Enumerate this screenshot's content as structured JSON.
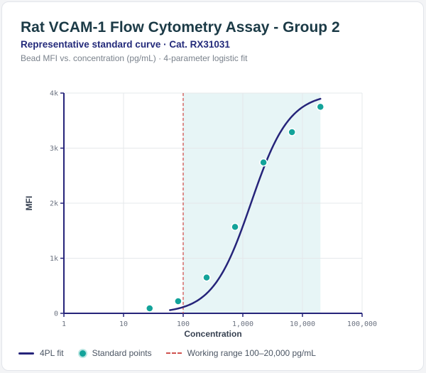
{
  "header": {
    "title": "Rat VCAM-1 Flow Cytometry Assay - Group 2",
    "subtitle": "Representative standard curve · Cat. RX31031",
    "description": "Bead MFI vs. concentration (pg/mL) · 4-parameter logistic fit"
  },
  "legend": {
    "fit_label": "4PL fit",
    "points_label": "Standard points",
    "range_label": "Working range 100–20,000 pg/mL"
  },
  "colors": {
    "fit": "#26247a",
    "points": "#13a39a",
    "range_line": "#d0524f",
    "range_band": "#e7f5f6"
  },
  "chart_data": {
    "type": "scatter",
    "xlabel": "Concentration",
    "ylabel": "MFI",
    "x_scale": "log",
    "xlim": [
      1,
      100000
    ],
    "ylim": [
      0,
      4000
    ],
    "x_ticks": [
      1,
      10,
      100,
      1000,
      10000,
      100000
    ],
    "x_tick_labels": [
      "1",
      "10",
      "100",
      "1,000",
      "10,000",
      "100,000"
    ],
    "y_ticks": [
      0,
      1000,
      2000,
      3000,
      4000
    ],
    "y_tick_labels": [
      "0",
      "1k",
      "2k",
      "3k",
      "4k"
    ],
    "grid": true,
    "working_range": [
      100,
      20000
    ],
    "lloq_line_x": 100,
    "series": [
      {
        "name": "Standard points",
        "x": [
          27.4,
          82.3,
          247,
          741,
          2222,
          6667,
          20000
        ],
        "y": [
          90,
          220,
          650,
          1570,
          2740,
          3290,
          3750
        ]
      }
    ],
    "fit": {
      "name": "4PL fit",
      "x_range": [
        60,
        20000
      ],
      "params": {
        "a": 0,
        "d": 4000,
        "c": 1370,
        "b": 1.35
      }
    }
  }
}
